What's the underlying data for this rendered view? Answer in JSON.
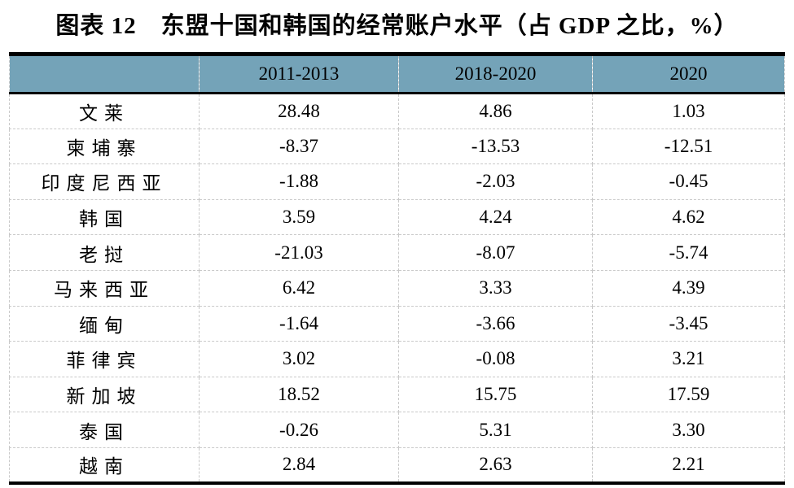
{
  "title": "图表 12　东盟十国和韩国的经常账户水平（占 GDP 之比，%）",
  "colors": {
    "header_bg": "#74A3B8",
    "text": "#000000",
    "grid_dashed": "#c9c9c9",
    "rule": "#000000"
  },
  "table": {
    "columns": [
      "",
      "2011-2013",
      "2018-2020",
      "2020"
    ],
    "rows": [
      {
        "country": "文莱",
        "v1": "28.48",
        "v2": "4.86",
        "v3": "1.03"
      },
      {
        "country": "柬埔寨",
        "v1": "-8.37",
        "v2": "-13.53",
        "v3": "-12.51"
      },
      {
        "country": "印度尼西亚",
        "v1": "-1.88",
        "v2": "-2.03",
        "v3": "-0.45"
      },
      {
        "country": "韩国",
        "v1": "3.59",
        "v2": "4.24",
        "v3": "4.62"
      },
      {
        "country": "老挝",
        "v1": "-21.03",
        "v2": "-8.07",
        "v3": "-5.74"
      },
      {
        "country": "马来西亚",
        "v1": "6.42",
        "v2": "3.33",
        "v3": "4.39"
      },
      {
        "country": "缅甸",
        "v1": "-1.64",
        "v2": "-3.66",
        "v3": "-3.45"
      },
      {
        "country": "菲律宾",
        "v1": "3.02",
        "v2": "-0.08",
        "v3": "3.21"
      },
      {
        "country": "新加坡",
        "v1": "18.52",
        "v2": "15.75",
        "v3": "17.59"
      },
      {
        "country": "泰国",
        "v1": "-0.26",
        "v2": "5.31",
        "v3": "3.30"
      },
      {
        "country": "越南",
        "v1": "2.84",
        "v2": "2.63",
        "v3": "2.21"
      }
    ]
  },
  "chart_data": {
    "type": "table",
    "title": "图表 12 东盟十国和韩国的经常账户水平（占 GDP 之比，%）",
    "row_labels": [
      "文莱",
      "柬埔寨",
      "印度尼西亚",
      "韩国",
      "老挝",
      "马来西亚",
      "缅甸",
      "菲律宾",
      "新加坡",
      "泰国",
      "越南"
    ],
    "series": [
      {
        "name": "2011-2013",
        "values": [
          28.48,
          -8.37,
          -1.88,
          3.59,
          -21.03,
          6.42,
          -1.64,
          3.02,
          18.52,
          -0.26,
          2.84
        ]
      },
      {
        "name": "2018-2020",
        "values": [
          4.86,
          -13.53,
          -2.03,
          4.24,
          -8.07,
          3.33,
          -3.66,
          -0.08,
          15.75,
          5.31,
          2.63
        ]
      },
      {
        "name": "2020",
        "values": [
          1.03,
          -12.51,
          -0.45,
          4.62,
          -5.74,
          4.39,
          -3.45,
          3.21,
          17.59,
          3.3,
          2.21
        ]
      }
    ]
  }
}
